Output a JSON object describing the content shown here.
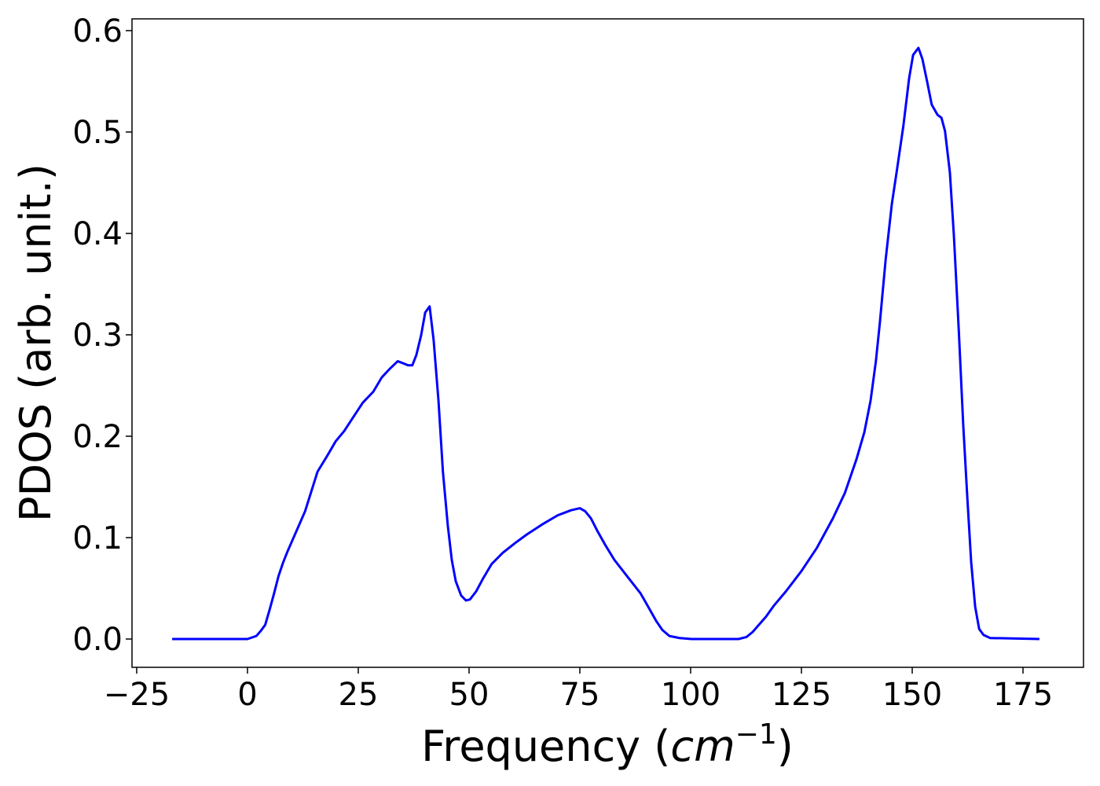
{
  "chart_data": {
    "type": "line",
    "xlabel": {
      "text": "Frequency (",
      "math": "cm",
      "sup": "−1",
      "close": ")"
    },
    "ylabel": "PDOS (arb. unit.)",
    "xlim": [
      -26.06,
      188.65
    ],
    "ylim": [
      -0.0279,
      0.6116
    ],
    "xticks": [
      {
        "value": -25,
        "label": "−25"
      },
      0,
      25,
      50,
      75,
      100,
      125,
      150,
      175
    ],
    "yticks": [
      {
        "value": 0,
        "label": "0.0"
      },
      0.1,
      0.2,
      0.3,
      0.4,
      0.5,
      0.6
    ],
    "series": [
      {
        "color": "#0000ff",
        "x": [
          -17,
          0,
          2,
          3,
          4,
          5,
          6,
          7,
          8,
          9,
          13,
          15.8,
          17.9,
          19.9,
          21.8,
          23.6,
          26,
          28.4,
          30.3,
          32,
          33.9,
          35.1,
          36.2,
          37.2,
          38.1,
          39.2,
          40.1,
          41.1,
          42,
          43.1,
          44.1,
          45.2,
          46.1,
          47,
          48.2,
          49.3,
          50.2,
          51.6,
          53.2,
          55.1,
          57.6,
          60.5,
          63,
          66.5,
          70,
          73,
          75,
          76.2,
          77.5,
          78.9,
          80.7,
          82.8,
          86,
          88.7,
          90.4,
          92.2,
          93.6,
          95.2,
          97.5,
          100.2,
          110.8,
          112.6,
          114,
          115.6,
          117,
          118.8,
          121.5,
          125,
          128.5,
          132.1,
          134.8,
          137.4,
          139.2,
          140.6,
          141.8,
          142.7,
          144,
          145.4,
          146.6,
          148,
          149.3,
          150.2,
          151.4,
          152.3,
          153.4,
          154.4,
          155.7,
          156.6,
          157.4,
          158.5,
          159.4,
          160.5,
          161.5,
          162.4,
          163.3,
          164.2,
          165.1,
          166.1,
          167.6,
          178.7
        ],
        "values": [
          0,
          0,
          0.003,
          0.008,
          0.014,
          0.029,
          0.045,
          0.062,
          0.075,
          0.086,
          0.126,
          0.165,
          0.18,
          0.195,
          0.205,
          0.217,
          0.233,
          0.244,
          0.258,
          0.266,
          0.274,
          0.272,
          0.27,
          0.27,
          0.28,
          0.3,
          0.322,
          0.328,
          0.295,
          0.235,
          0.165,
          0.112,
          0.078,
          0.057,
          0.043,
          0.038,
          0.039,
          0.047,
          0.06,
          0.074,
          0.085,
          0.095,
          0.103,
          0.113,
          0.122,
          0.127,
          0.129,
          0.126,
          0.119,
          0.107,
          0.093,
          0.078,
          0.06,
          0.045,
          0.032,
          0.018,
          0.009,
          0.003,
          0.001,
          0,
          0,
          0.002,
          0.007,
          0.015,
          0.022,
          0.033,
          0.047,
          0.067,
          0.09,
          0.119,
          0.144,
          0.177,
          0.204,
          0.235,
          0.274,
          0.312,
          0.374,
          0.429,
          0.464,
          0.506,
          0.553,
          0.576,
          0.583,
          0.572,
          0.549,
          0.527,
          0.517,
          0.514,
          0.501,
          0.46,
          0.398,
          0.305,
          0.212,
          0.142,
          0.076,
          0.032,
          0.01,
          0.004,
          0.001,
          0
        ]
      }
    ]
  }
}
